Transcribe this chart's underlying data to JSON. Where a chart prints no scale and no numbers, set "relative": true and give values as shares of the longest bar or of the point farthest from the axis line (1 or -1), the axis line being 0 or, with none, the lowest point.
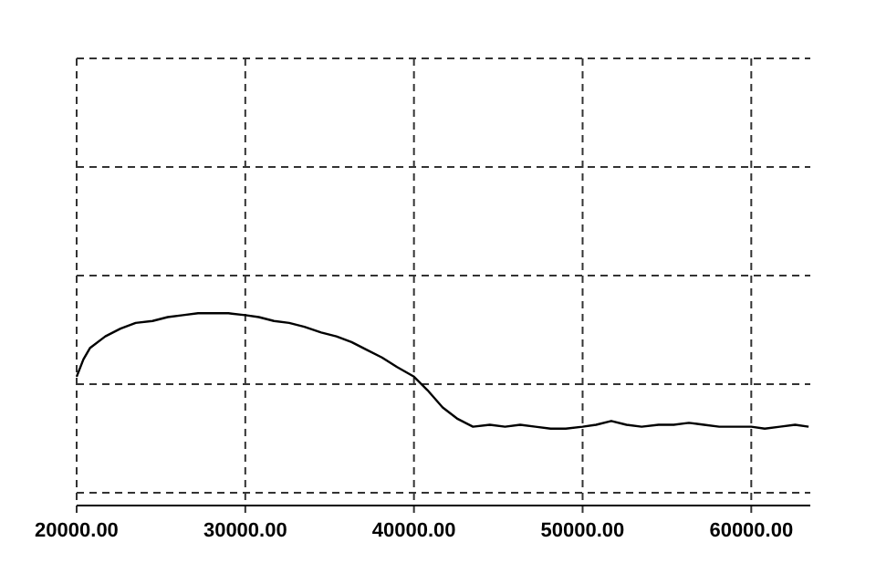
{
  "chart_data": {
    "type": "line",
    "relative": true,
    "grid": true,
    "line_style": "solid",
    "xlim": [
      20000,
      63500
    ],
    "xticks": [
      {
        "value": 20000,
        "label": "20000.00"
      },
      {
        "value": 30000,
        "label": "30000.00"
      },
      {
        "value": 40000,
        "label": "40000.00"
      },
      {
        "value": 50000,
        "label": "50000.00"
      },
      {
        "value": 60000,
        "label": "60000.00"
      }
    ],
    "series": [
      {
        "color": "#000000",
        "x": [
          20000,
          20400,
          20800,
          21700,
          22600,
          23500,
          24500,
          25400,
          26300,
          27200,
          28100,
          29000,
          30000,
          30800,
          31700,
          32600,
          33500,
          34500,
          35400,
          36300,
          37200,
          38100,
          39000,
          40000,
          40800,
          41700,
          42600,
          43500,
          44500,
          45400,
          46300,
          47200,
          48100,
          49000,
          50000,
          50800,
          51700,
          52600,
          53500,
          54500,
          55400,
          56300,
          57200,
          58100,
          59000,
          60000,
          60800,
          61700,
          62600,
          63400
        ],
        "values": [
          0.67,
          0.76,
          0.82,
          0.88,
          0.92,
          0.95,
          0.96,
          0.98,
          0.99,
          1,
          1,
          1,
          0.99,
          0.98,
          0.96,
          0.95,
          0.93,
          0.9,
          0.88,
          0.85,
          0.81,
          0.77,
          0.72,
          0.67,
          0.6,
          0.51,
          0.45,
          0.41,
          0.42,
          0.41,
          0.42,
          0.41,
          0.4,
          0.4,
          0.41,
          0.42,
          0.44,
          0.42,
          0.41,
          0.42,
          0.42,
          0.43,
          0.42,
          0.41,
          0.41,
          0.41,
          0.4,
          0.41,
          0.42,
          0.41
        ]
      }
    ]
  }
}
